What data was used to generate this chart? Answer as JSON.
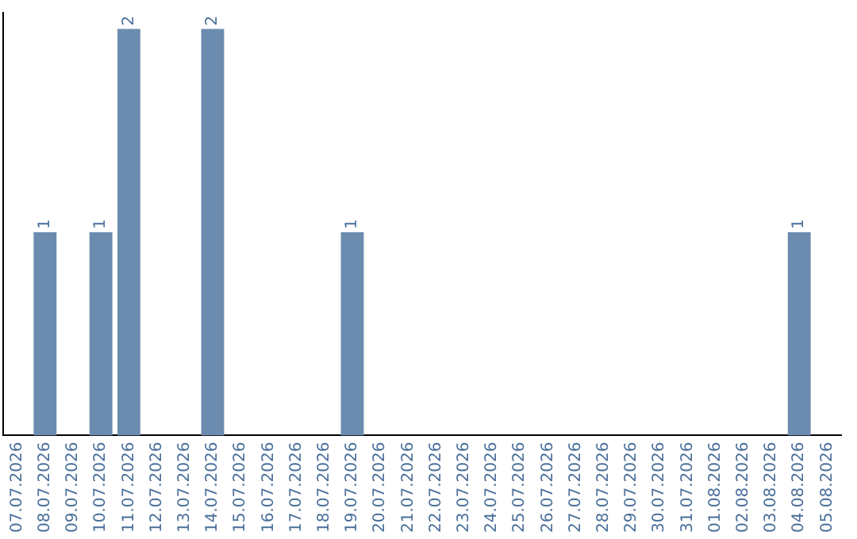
{
  "chart_data": {
    "type": "bar",
    "categories": [
      "07.07.2026",
      "08.07.2026",
      "09.07.2026",
      "10.07.2026",
      "11.07.2026",
      "12.07.2026",
      "13.07.2026",
      "14.07.2026",
      "15.07.2026",
      "16.07.2026",
      "17.07.2026",
      "18.07.2026",
      "19.07.2026",
      "20.07.2026",
      "21.07.2026",
      "22.07.2026",
      "23.07.2026",
      "24.07.2026",
      "25.07.2026",
      "26.07.2026",
      "27.07.2026",
      "28.07.2026",
      "29.07.2026",
      "30.07.2026",
      "31.07.2026",
      "01.08.2026",
      "02.08.2026",
      "03.08.2026",
      "04.08.2026",
      "05.08.2026"
    ],
    "values": [
      0,
      1,
      0,
      1,
      2,
      0,
      0,
      2,
      0,
      0,
      0,
      0,
      1,
      0,
      0,
      0,
      0,
      0,
      0,
      0,
      0,
      0,
      0,
      0,
      0,
      0,
      0,
      0,
      1,
      0
    ],
    "color": "#6b8caf",
    "ylim": [
      0,
      2.08
    ],
    "tick_labels": "x",
    "grid": false,
    "legend": false,
    "value_labels": [
      null,
      "1",
      null,
      "1",
      "2",
      null,
      null,
      "2",
      null,
      null,
      null,
      null,
      "1",
      null,
      null,
      null,
      null,
      null,
      null,
      null,
      null,
      null,
      null,
      null,
      null,
      null,
      null,
      null,
      "1",
      null
    ]
  }
}
